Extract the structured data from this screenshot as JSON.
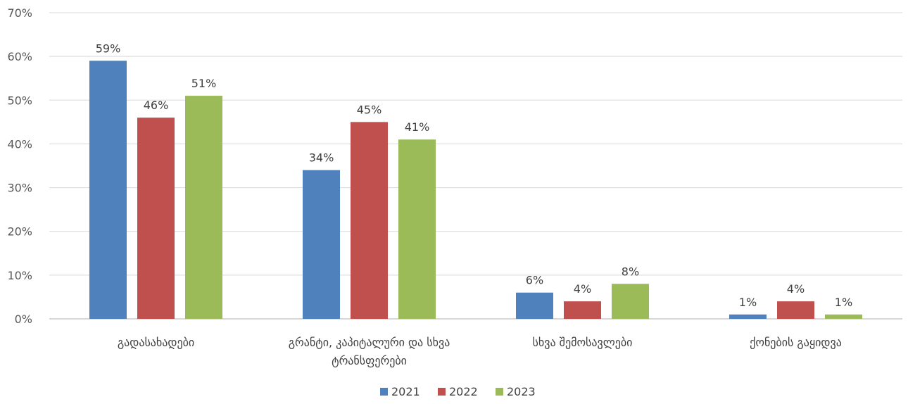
{
  "chart_data": {
    "type": "bar",
    "categories": [
      [
        "გადასახადები"
      ],
      [
        "გრანტი, კაპიტალური და სხვა",
        "ტრანსფერები"
      ],
      [
        "სხვა შემოსავლები"
      ],
      [
        "ქონების გაყიდვა"
      ]
    ],
    "series": [
      {
        "name": "2021",
        "color": "#4f81bd",
        "values": [
          59,
          34,
          6,
          1
        ]
      },
      {
        "name": "2022",
        "color": "#c0504d",
        "values": [
          46,
          45,
          4,
          4
        ]
      },
      {
        "name": "2023",
        "color": "#9bbb59",
        "values": [
          51,
          41,
          8,
          1
        ]
      }
    ],
    "ylim": [
      0,
      70
    ],
    "yticks": [
      0,
      10,
      20,
      30,
      40,
      50,
      60,
      70
    ],
    "ytick_suffix": "%",
    "value_suffix": "%",
    "grid": true,
    "legend_position": "bottom"
  }
}
